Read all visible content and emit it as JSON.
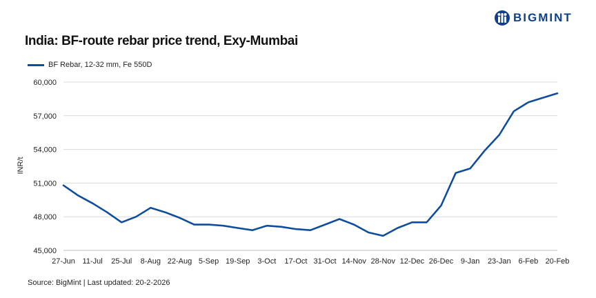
{
  "logo": {
    "text": "BIGMINT",
    "color": "#0e3f8a"
  },
  "source_text": "Source: BigMint | Last updated: 20-2-2026",
  "chart_data": {
    "type": "line",
    "title": "India: BF-route rebar price trend, Exy-Mumbai",
    "xlabel": "",
    "ylabel": "INR/t",
    "ylim": [
      45000,
      60000
    ],
    "yticks": [
      45000,
      48000,
      51000,
      54000,
      57000,
      60000
    ],
    "ytick_labels": [
      "45,000",
      "48,000",
      "51,000",
      "54,000",
      "57,000",
      "60,000"
    ],
    "grid": "horizontal",
    "legend_position": "top-left",
    "categories": [
      "27-Jun",
      "4-Jul",
      "11-Jul",
      "18-Jul",
      "25-Jul",
      "1-Aug",
      "8-Aug",
      "15-Aug",
      "22-Aug",
      "29-Aug",
      "5-Sep",
      "12-Sep",
      "19-Sep",
      "26-Sep",
      "3-Oct",
      "10-Oct",
      "17-Oct",
      "24-Oct",
      "31-Oct",
      "7-Nov",
      "14-Nov",
      "21-Nov",
      "28-Nov",
      "5-Dec",
      "12-Dec",
      "19-Dec",
      "26-Dec",
      "2-Jan",
      "9-Jan",
      "16-Jan",
      "23-Jan",
      "30-Jan",
      "6-Feb",
      "13-Feb",
      "20-Feb"
    ],
    "xtick_labels": [
      "27-Jun",
      "",
      "11-Jul",
      "",
      "25-Jul",
      "",
      "8-Aug",
      "",
      "22-Aug",
      "",
      "5-Sep",
      "",
      "19-Sep",
      "",
      "3-Oct",
      "",
      "17-Oct",
      "",
      "31-Oct",
      "",
      "14-Nov",
      "",
      "28-Nov",
      "",
      "12-Dec",
      "",
      "26-Dec",
      "",
      "9-Jan",
      "",
      "23-Jan",
      "",
      "6-Feb",
      "",
      "20-Feb"
    ],
    "series": [
      {
        "name": "BF Rebar, 12-32 mm, Fe 550D",
        "color": "#0e4d9c",
        "values": [
          50800,
          49900,
          49200,
          48400,
          47500,
          48000,
          48800,
          48400,
          47900,
          47300,
          47300,
          47200,
          47000,
          46800,
          47200,
          47100,
          46900,
          46800,
          47300,
          47800,
          47300,
          46600,
          46300,
          47000,
          47500,
          47500,
          49000,
          51900,
          52300,
          53900,
          55300,
          57400,
          58200,
          58600,
          59000
        ]
      }
    ]
  }
}
